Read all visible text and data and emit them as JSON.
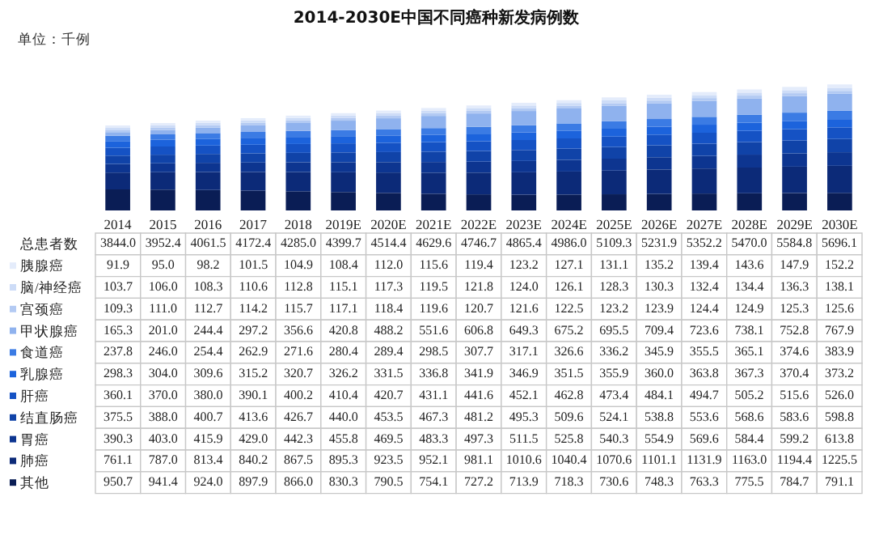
{
  "chart_data": {
    "type": "bar",
    "stacked": true,
    "legend": "bottom left",
    "title": "2014-2030E中国不同癌种新发病例数",
    "annotations": [
      "单位：千例",
      "总患者数"
    ],
    "categories": [
      "2014",
      "2015",
      "2016",
      "2017",
      "2018",
      "2019E",
      "2020E",
      "2021E",
      "2022E",
      "2023E",
      "2024E",
      "2025E",
      "2026E",
      "2027E",
      "2028E",
      "2029E",
      "2030E"
    ],
    "totals": [
      "3844.0",
      "3952.4",
      "4061.5",
      "4172.4",
      "4285.0",
      "4399.7",
      "4514.4",
      "4629.6",
      "4746.7",
      "4865.4",
      "4986.0",
      "5109.3",
      "5231.9",
      "5352.2",
      "5470.0",
      "5584.8",
      "5696.1"
    ],
    "series": [
      {
        "name": "其他",
        "color": "#0a1d55",
        "values": [
          950.7,
          941.4,
          924.0,
          897.9,
          866.0,
          830.3,
          790.5,
          754.1,
          727.2,
          713.9,
          718.3,
          730.6,
          748.3,
          763.3,
          775.5,
          784.7,
          791.1
        ],
        "value_labels": [
          "950.7",
          "941.4",
          "924.0",
          "897.9",
          "866.0",
          "830.3",
          "790.5",
          "754.1",
          "727.2",
          "713.9",
          "718.3",
          "730.6",
          "748.3",
          "763.3",
          "775.5",
          "784.7",
          "791.1"
        ]
      },
      {
        "name": "肺癌",
        "color": "#0c2a78",
        "values": [
          761.1,
          787.0,
          813.4,
          840.2,
          867.5,
          895.3,
          923.5,
          952.1,
          981.1,
          1010.6,
          1040.4,
          1070.6,
          1101.1,
          1131.9,
          1163.0,
          1194.4,
          1225.5
        ],
        "value_labels": [
          "761.1",
          "787.0",
          "813.4",
          "840.2",
          "867.5",
          "895.3",
          "923.5",
          "952.1",
          "981.1",
          "1010.6",
          "1040.4",
          "1070.6",
          "1101.1",
          "1131.9",
          "1163.0",
          "1194.4",
          "1225.5"
        ]
      },
      {
        "name": "胃癌",
        "color": "#0d3590",
        "values": [
          390.3,
          403.0,
          415.9,
          429.0,
          442.3,
          455.8,
          469.5,
          483.3,
          497.3,
          511.5,
          525.8,
          540.3,
          554.9,
          569.6,
          584.4,
          599.2,
          613.8
        ],
        "value_labels": [
          "390.3",
          "403.0",
          "415.9",
          "429.0",
          "442.3",
          "455.8",
          "469.5",
          "483.3",
          "497.3",
          "511.5",
          "525.8",
          "540.3",
          "554.9",
          "569.6",
          "584.4",
          "599.2",
          "613.8"
        ]
      },
      {
        "name": "结直肠癌",
        "color": "#1043a8",
        "values": [
          375.5,
          388.0,
          400.7,
          413.6,
          426.7,
          440.0,
          453.5,
          467.3,
          481.2,
          495.3,
          509.6,
          524.1,
          538.8,
          553.6,
          568.6,
          583.6,
          598.8
        ],
        "value_labels": [
          "375.5",
          "388.0",
          "400.7",
          "413.6",
          "426.7",
          "440.0",
          "453.5",
          "467.3",
          "481.2",
          "495.3",
          "509.6",
          "524.1",
          "538.8",
          "553.6",
          "568.6",
          "583.6",
          "598.8"
        ]
      },
      {
        "name": "肝癌",
        "color": "#1552c4",
        "values": [
          360.1,
          370.0,
          380.0,
          390.1,
          400.2,
          410.4,
          420.7,
          431.1,
          441.6,
          452.1,
          462.8,
          473.4,
          484.1,
          494.7,
          505.2,
          515.6,
          526.0
        ],
        "value_labels": [
          "360.1",
          "370.0",
          "380.0",
          "390.1",
          "400.2",
          "410.4",
          "420.7",
          "431.1",
          "441.6",
          "452.1",
          "462.8",
          "473.4",
          "484.1",
          "494.7",
          "505.2",
          "515.6",
          "526.0"
        ]
      },
      {
        "name": "乳腺癌",
        "color": "#1c63dc",
        "values": [
          298.3,
          304.0,
          309.6,
          315.2,
          320.7,
          326.2,
          331.5,
          336.8,
          341.9,
          346.9,
          351.5,
          355.9,
          360.0,
          363.8,
          367.3,
          370.4,
          373.2
        ],
        "value_labels": [
          "298.3",
          "304.0",
          "309.6",
          "315.2",
          "320.7",
          "326.2",
          "331.5",
          "336.8",
          "341.9",
          "346.9",
          "351.5",
          "355.9",
          "360.0",
          "363.8",
          "367.3",
          "370.4",
          "373.2"
        ]
      },
      {
        "name": "食道癌",
        "color": "#3b7be4",
        "values": [
          237.8,
          246.0,
          254.4,
          262.9,
          271.6,
          280.4,
          289.4,
          298.5,
          307.7,
          317.1,
          326.6,
          336.2,
          345.9,
          355.5,
          365.1,
          374.6,
          383.9
        ],
        "value_labels": [
          "237.8",
          "246.0",
          "254.4",
          "262.9",
          "271.6",
          "280.4",
          "289.4",
          "298.5",
          "307.7",
          "317.1",
          "326.6",
          "336.2",
          "345.9",
          "355.5",
          "365.1",
          "374.6",
          "383.9"
        ]
      },
      {
        "name": "甲状腺癌",
        "color": "#8fb2ee",
        "values": [
          165.3,
          201.0,
          244.4,
          297.2,
          356.6,
          420.8,
          488.2,
          551.6,
          606.8,
          649.3,
          675.2,
          695.5,
          709.4,
          723.6,
          738.1,
          752.8,
          767.9
        ],
        "value_labels": [
          "165.3",
          "201.0",
          "244.4",
          "297.2",
          "356.6",
          "420.8",
          "488.2",
          "551.6",
          "606.8",
          "649.3",
          "675.2",
          "695.5",
          "709.4",
          "723.6",
          "738.1",
          "752.8",
          "767.9"
        ]
      },
      {
        "name": "宫颈癌",
        "color": "#b3caf3",
        "values": [
          109.3,
          111.0,
          112.7,
          114.2,
          115.7,
          117.1,
          118.4,
          119.6,
          120.7,
          121.6,
          122.5,
          123.2,
          123.9,
          124.4,
          124.9,
          125.3,
          125.6
        ],
        "value_labels": [
          "109.3",
          "111.0",
          "112.7",
          "114.2",
          "115.7",
          "117.1",
          "118.4",
          "119.6",
          "120.7",
          "121.6",
          "122.5",
          "123.2",
          "123.9",
          "124.4",
          "124.9",
          "125.3",
          "125.6"
        ]
      },
      {
        "name": "脑/神经癌",
        "color": "#cddcf7",
        "values": [
          103.7,
          106.0,
          108.3,
          110.6,
          112.8,
          115.1,
          117.3,
          119.5,
          121.8,
          124.0,
          126.1,
          128.3,
          130.3,
          132.4,
          134.4,
          136.3,
          138.1
        ],
        "value_labels": [
          "103.7",
          "106.0",
          "108.3",
          "110.6",
          "112.8",
          "115.1",
          "117.3",
          "119.5",
          "121.8",
          "124.0",
          "126.1",
          "128.3",
          "130.3",
          "132.4",
          "134.4",
          "136.3",
          "138.1"
        ]
      },
      {
        "name": "胰腺癌",
        "color": "#e4ecfb",
        "values": [
          91.9,
          95.0,
          98.2,
          101.5,
          104.9,
          108.4,
          112.0,
          115.6,
          119.4,
          123.2,
          127.1,
          131.1,
          135.2,
          139.4,
          143.6,
          147.9,
          152.2
        ],
        "value_labels": [
          "91.9",
          "95.0",
          "98.2",
          "101.5",
          "104.9",
          "108.4",
          "112.0",
          "115.6",
          "119.4",
          "123.2",
          "127.1",
          "131.1",
          "135.2",
          "139.4",
          "143.6",
          "147.9",
          "152.2"
        ]
      }
    ]
  }
}
